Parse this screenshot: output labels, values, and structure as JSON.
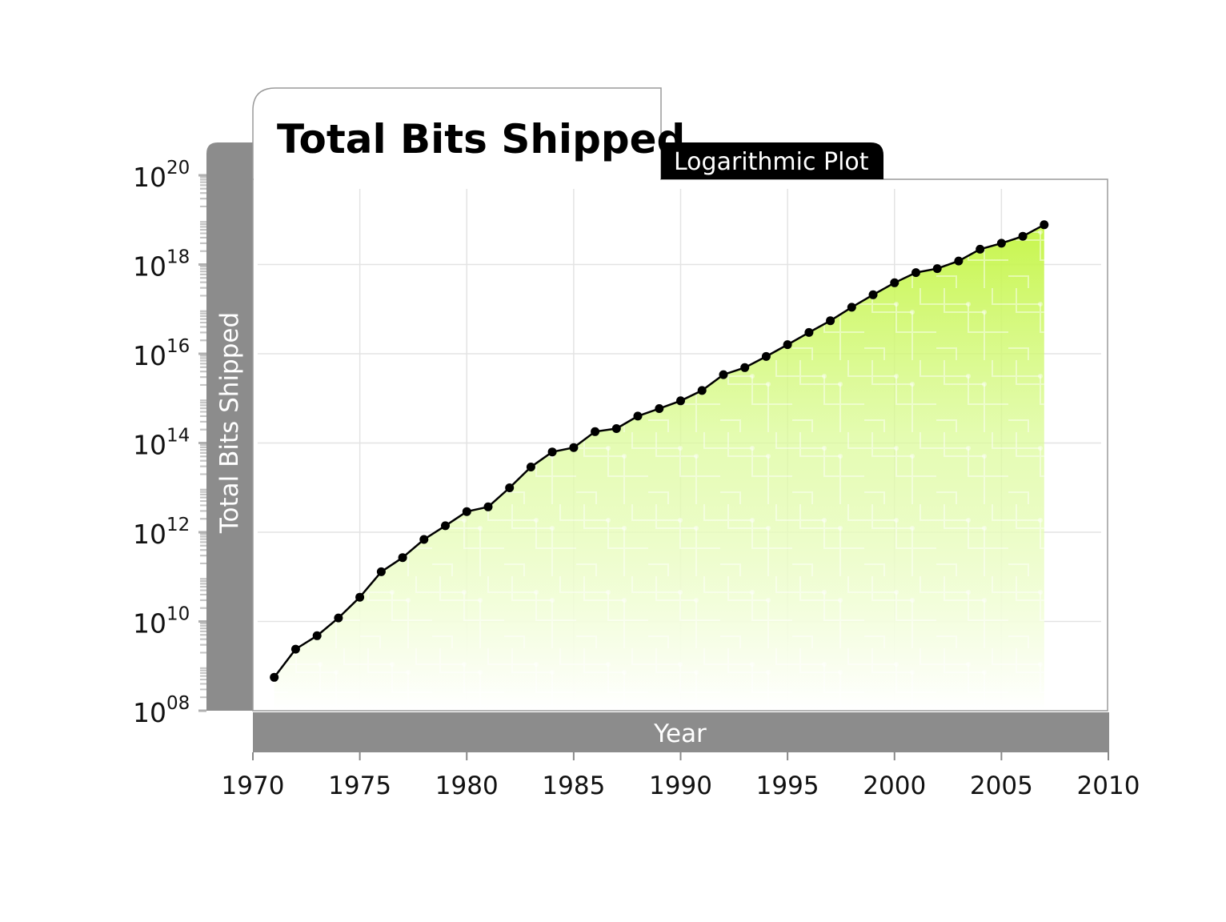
{
  "chart_data": {
    "type": "area",
    "title": "Total Bits Shipped",
    "subtitle": "Logarithmic Plot",
    "xlabel": "Year",
    "ylabel": "Total Bits Shipped",
    "xlim": [
      1970,
      2010
    ],
    "ylim": [
      100000000.0,
      1e+20
    ],
    "y_scale": "log",
    "grid": true,
    "x_ticks": [
      {
        "value": 1970,
        "label": "1970"
      },
      {
        "value": 1975,
        "label": "1975"
      },
      {
        "value": 1980,
        "label": "1980"
      },
      {
        "value": 1985,
        "label": "1985"
      },
      {
        "value": 1990,
        "label": "1990"
      },
      {
        "value": 1995,
        "label": "1995"
      },
      {
        "value": 2000,
        "label": "2000"
      },
      {
        "value": 2005,
        "label": "2005"
      },
      {
        "value": 2010,
        "label": "2010"
      }
    ],
    "y_ticks": [
      {
        "value": 100000000.0,
        "base": "10",
        "exp": "08"
      },
      {
        "value": 10000000000.0,
        "base": "10",
        "exp": "10"
      },
      {
        "value": 1000000000000.0,
        "base": "10",
        "exp": "12"
      },
      {
        "value": 100000000000000.0,
        "base": "10",
        "exp": "14"
      },
      {
        "value": 1e+16,
        "base": "10",
        "exp": "16"
      },
      {
        "value": 1e+18,
        "base": "10",
        "exp": "18"
      },
      {
        "value": 1e+20,
        "base": "10",
        "exp": "20"
      }
    ],
    "x": [
      1971,
      1972,
      1973,
      1974,
      1975,
      1976,
      1977,
      1978,
      1979,
      1980,
      1981,
      1982,
      1983,
      1984,
      1985,
      1986,
      1987,
      1988,
      1989,
      1990,
      1991,
      1992,
      1993,
      1994,
      1995,
      1996,
      1997,
      1998,
      1999,
      2000,
      2001,
      2002,
      2003,
      2004,
      2005,
      2006,
      2007
    ],
    "y": [
      560000000.0,
      2400000000.0,
      4800000000.0,
      12000000000.0,
      35000000000.0,
      130000000000.0,
      270000000000.0,
      690000000000.0,
      1400000000000.0,
      2900000000000.0,
      3700000000000.0,
      9900000000000.0,
      29000000000000.0,
      63000000000000.0,
      79000000000000.0,
      180000000000000.0,
      210000000000000.0,
      400000000000000.0,
      590000000000000.0,
      880000000000000.0,
      1500000000000000.0,
      3400000000000000.0,
      4900000000000000.0,
      8700000000000000.0,
      1.6e+16,
      3e+16,
      5.5e+16,
      1.1e+17,
      2.1e+17,
      3.9e+17,
      6.6e+17,
      8.1e+17,
      1.2e+18,
      2.2e+18,
      3e+18,
      4.3e+18,
      7.8e+18
    ],
    "colors": {
      "line": "#000000",
      "fill_top": "#c4f542",
      "fill_bottom": "#ffffff",
      "band": "#8c8c8c",
      "grid": "#e3e3e3"
    }
  }
}
